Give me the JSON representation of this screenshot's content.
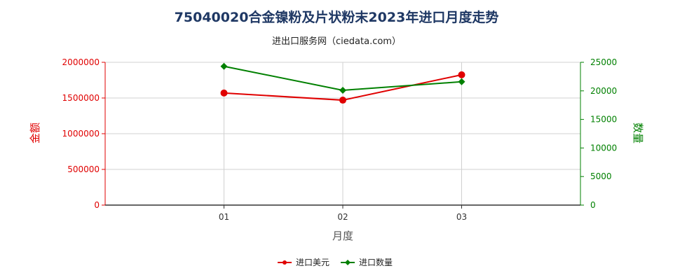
{
  "chart_data": {
    "type": "line",
    "title": "75040020合金镍粉及片状粉末2023年进口月度走势",
    "subtitle": "进出口服务网（ciedata.com）",
    "xlabel": "月度",
    "ylabel_left": "金额",
    "ylabel_right": "数量",
    "categories": [
      "01",
      "02",
      "03"
    ],
    "y_left": {
      "ticks": [
        "0",
        "500000",
        "1000000",
        "1500000",
        "2000000"
      ],
      "range": [
        0,
        2000000
      ]
    },
    "y_right": {
      "ticks": [
        "0",
        "5000",
        "10000",
        "15000",
        "20000",
        "25000"
      ],
      "range": [
        0,
        25000
      ]
    },
    "grid": true,
    "legend_position": "bottom-center",
    "series": [
      {
        "name": "进口美元",
        "axis": "left",
        "color": "#e00000",
        "values": [
          1570000,
          1470000,
          1825000
        ]
      },
      {
        "name": "进口数量",
        "axis": "right",
        "color": "#008000",
        "values": [
          24300,
          20100,
          21600
        ]
      }
    ]
  }
}
